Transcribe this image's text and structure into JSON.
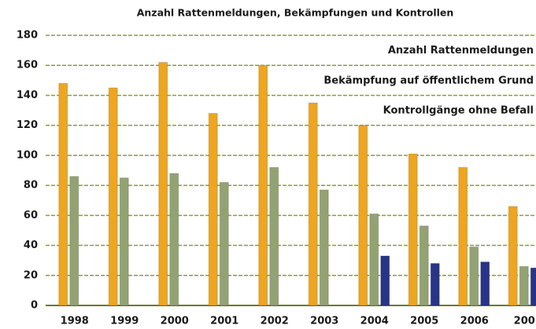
{
  "chart_data": {
    "type": "bar",
    "title": "Anzahl Rattenmeldungen, Bekämpfungen und Kontrollen",
    "categories": [
      "1998",
      "1999",
      "2000",
      "2001",
      "2002",
      "2003",
      "2004",
      "2005",
      "2006",
      "200"
    ],
    "series": [
      {
        "name": "Anzahl Rattenmeldungen",
        "color": "#eea51f",
        "values": [
          148,
          145,
          162,
          128,
          160,
          135,
          120,
          101,
          92,
          66
        ]
      },
      {
        "name": "Bekämpfung auf öffentlichem Grund",
        "color": "#93a272",
        "values": [
          86,
          85,
          88,
          82,
          92,
          77,
          61,
          53,
          39,
          26
        ]
      },
      {
        "name": "Kontrollgänge ohne Befall",
        "color": "#283487",
        "values": [
          null,
          null,
          null,
          null,
          null,
          null,
          33,
          28,
          29,
          25
        ]
      }
    ],
    "ylim": [
      0,
      180
    ],
    "yticks": [
      0,
      20,
      40,
      60,
      80,
      100,
      120,
      140,
      160,
      180
    ],
    "grid": true
  }
}
